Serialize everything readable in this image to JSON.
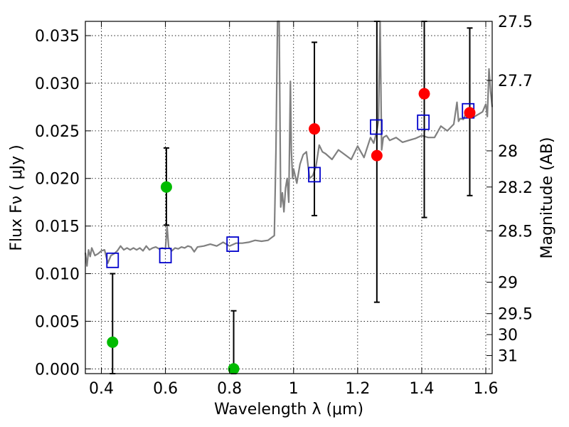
{
  "chart_data": {
    "type": "scatter",
    "title": "",
    "xlabel": "Wavelength  λ (μm)",
    "ylabel": "Flux  Fν  ( μJy )",
    "y2label": "Magnitude (AB)",
    "xlim": [
      0.35,
      1.62
    ],
    "ylim": [
      -0.0005,
      0.0365
    ],
    "grid": true,
    "x_ticks": [
      0.4,
      0.6,
      0.8,
      1.0,
      1.2,
      1.4,
      1.6
    ],
    "x_tick_labels": [
      "0.4",
      "0.6",
      "0.8",
      "1",
      "1.2",
      "1.4",
      "1.6"
    ],
    "y_ticks": [
      0.0,
      0.005,
      0.01,
      0.015,
      0.02,
      0.025,
      0.03,
      0.035
    ],
    "y_tick_labels": [
      "0.000",
      "0.005",
      "0.010",
      "0.015",
      "0.020",
      "0.025",
      "0.030",
      "0.035"
    ],
    "y2_ticks": [
      {
        "label": "27.5",
        "flux": 0.0365
      },
      {
        "label": "27.7",
        "flux": 0.0303
      },
      {
        "label": "28",
        "flux": 0.0229
      },
      {
        "label": "28.2",
        "flux": 0.0191
      },
      {
        "label": "28.5",
        "flux": 0.0145
      },
      {
        "label": "29",
        "flux": 0.0091
      },
      {
        "label": "29.5",
        "flux": 0.0058
      },
      {
        "label": "30",
        "flux": 0.0036
      },
      {
        "label": "31",
        "flux": 0.0014
      }
    ],
    "series": [
      {
        "name": "model spectrum",
        "kind": "line",
        "color": "#808080",
        "x": [
          0.35,
          0.355,
          0.36,
          0.365,
          0.37,
          0.38,
          0.39,
          0.4,
          0.41,
          0.42,
          0.43,
          0.44,
          0.45,
          0.46,
          0.47,
          0.48,
          0.49,
          0.5,
          0.51,
          0.52,
          0.53,
          0.54,
          0.55,
          0.56,
          0.57,
          0.58,
          0.59,
          0.6,
          0.605,
          0.61,
          0.62,
          0.63,
          0.64,
          0.65,
          0.66,
          0.67,
          0.68,
          0.69,
          0.7,
          0.72,
          0.74,
          0.76,
          0.78,
          0.8,
          0.82,
          0.84,
          0.86,
          0.88,
          0.9,
          0.92,
          0.94,
          0.945,
          0.95,
          0.955,
          0.96,
          0.965,
          0.97,
          0.975,
          0.98,
          0.985,
          0.99,
          0.993,
          0.997,
          1.0,
          1.01,
          1.02,
          1.03,
          1.04,
          1.05,
          1.06,
          1.07,
          1.08,
          1.09,
          1.1,
          1.12,
          1.14,
          1.16,
          1.18,
          1.2,
          1.22,
          1.24,
          1.25,
          1.26,
          1.265,
          1.27,
          1.275,
          1.28,
          1.29,
          1.3,
          1.32,
          1.34,
          1.36,
          1.38,
          1.4,
          1.42,
          1.44,
          1.46,
          1.48,
          1.5,
          1.51,
          1.515,
          1.52,
          1.53,
          1.54,
          1.55,
          1.56,
          1.58,
          1.59,
          1.6,
          1.605,
          1.61,
          1.615,
          1.62
        ],
        "y": [
          0.0122,
          0.0108,
          0.0125,
          0.0118,
          0.0127,
          0.0119,
          0.0121,
          0.0124,
          0.0125,
          0.0111,
          0.0119,
          0.0121,
          0.0124,
          0.0129,
          0.0125,
          0.0127,
          0.0125,
          0.0127,
          0.0125,
          0.0127,
          0.0124,
          0.0129,
          0.0125,
          0.0127,
          0.0128,
          0.0126,
          0.0127,
          0.0126,
          0.015,
          0.0128,
          0.0124,
          0.0127,
          0.0126,
          0.0128,
          0.0127,
          0.0129,
          0.0128,
          0.0123,
          0.0128,
          0.0129,
          0.0131,
          0.0129,
          0.0133,
          0.0129,
          0.0132,
          0.0132,
          0.0133,
          0.0135,
          0.0134,
          0.0135,
          0.014,
          0.023,
          0.0365,
          0.0365,
          0.017,
          0.0185,
          0.0165,
          0.019,
          0.02,
          0.0175,
          0.0302,
          0.023,
          0.02,
          0.021,
          0.0195,
          0.0215,
          0.0225,
          0.0228,
          0.02,
          0.0203,
          0.0213,
          0.0235,
          0.0228,
          0.0226,
          0.022,
          0.023,
          0.0225,
          0.022,
          0.0234,
          0.0222,
          0.0243,
          0.0237,
          0.025,
          0.026,
          0.0365,
          0.023,
          0.0243,
          0.0245,
          0.024,
          0.0243,
          0.0238,
          0.024,
          0.0242,
          0.0245,
          0.0243,
          0.0243,
          0.0255,
          0.025,
          0.0257,
          0.028,
          0.026,
          0.0263,
          0.0262,
          0.027,
          0.0272,
          0.0264,
          0.0268,
          0.027,
          0.0278,
          0.0265,
          0.0315,
          0.0292,
          0.0275
        ]
      },
      {
        "name": "model photometry",
        "kind": "open-square",
        "color": "#0000cc",
        "x": [
          0.435,
          0.6,
          0.81,
          1.065,
          1.258,
          1.405,
          1.545
        ],
        "y": [
          0.0114,
          0.0119,
          0.0131,
          0.0204,
          0.0254,
          0.0259,
          0.0271
        ]
      },
      {
        "name": "observed detections",
        "kind": "filled-circle",
        "color": "#ff0000",
        "x": [
          1.065,
          1.26,
          1.408,
          1.55
        ],
        "y": [
          0.0252,
          0.0224,
          0.0289,
          0.0269
        ],
        "err_low": [
          0.0161,
          0.007,
          0.0159,
          0.0182
        ],
        "err_high": [
          0.0343,
          0.0365,
          0.0365,
          0.0358
        ]
      },
      {
        "name": "observed non-detections",
        "kind": "filled-circle",
        "color": "#00bb00",
        "x": [
          0.435,
          0.603,
          0.813
        ],
        "y": [
          0.0028,
          0.0191,
          0.0
        ],
        "err_low": [
          -0.0005,
          0.0151,
          -0.0005
        ],
        "err_high": [
          0.01,
          0.0232,
          0.0061
        ]
      }
    ]
  }
}
